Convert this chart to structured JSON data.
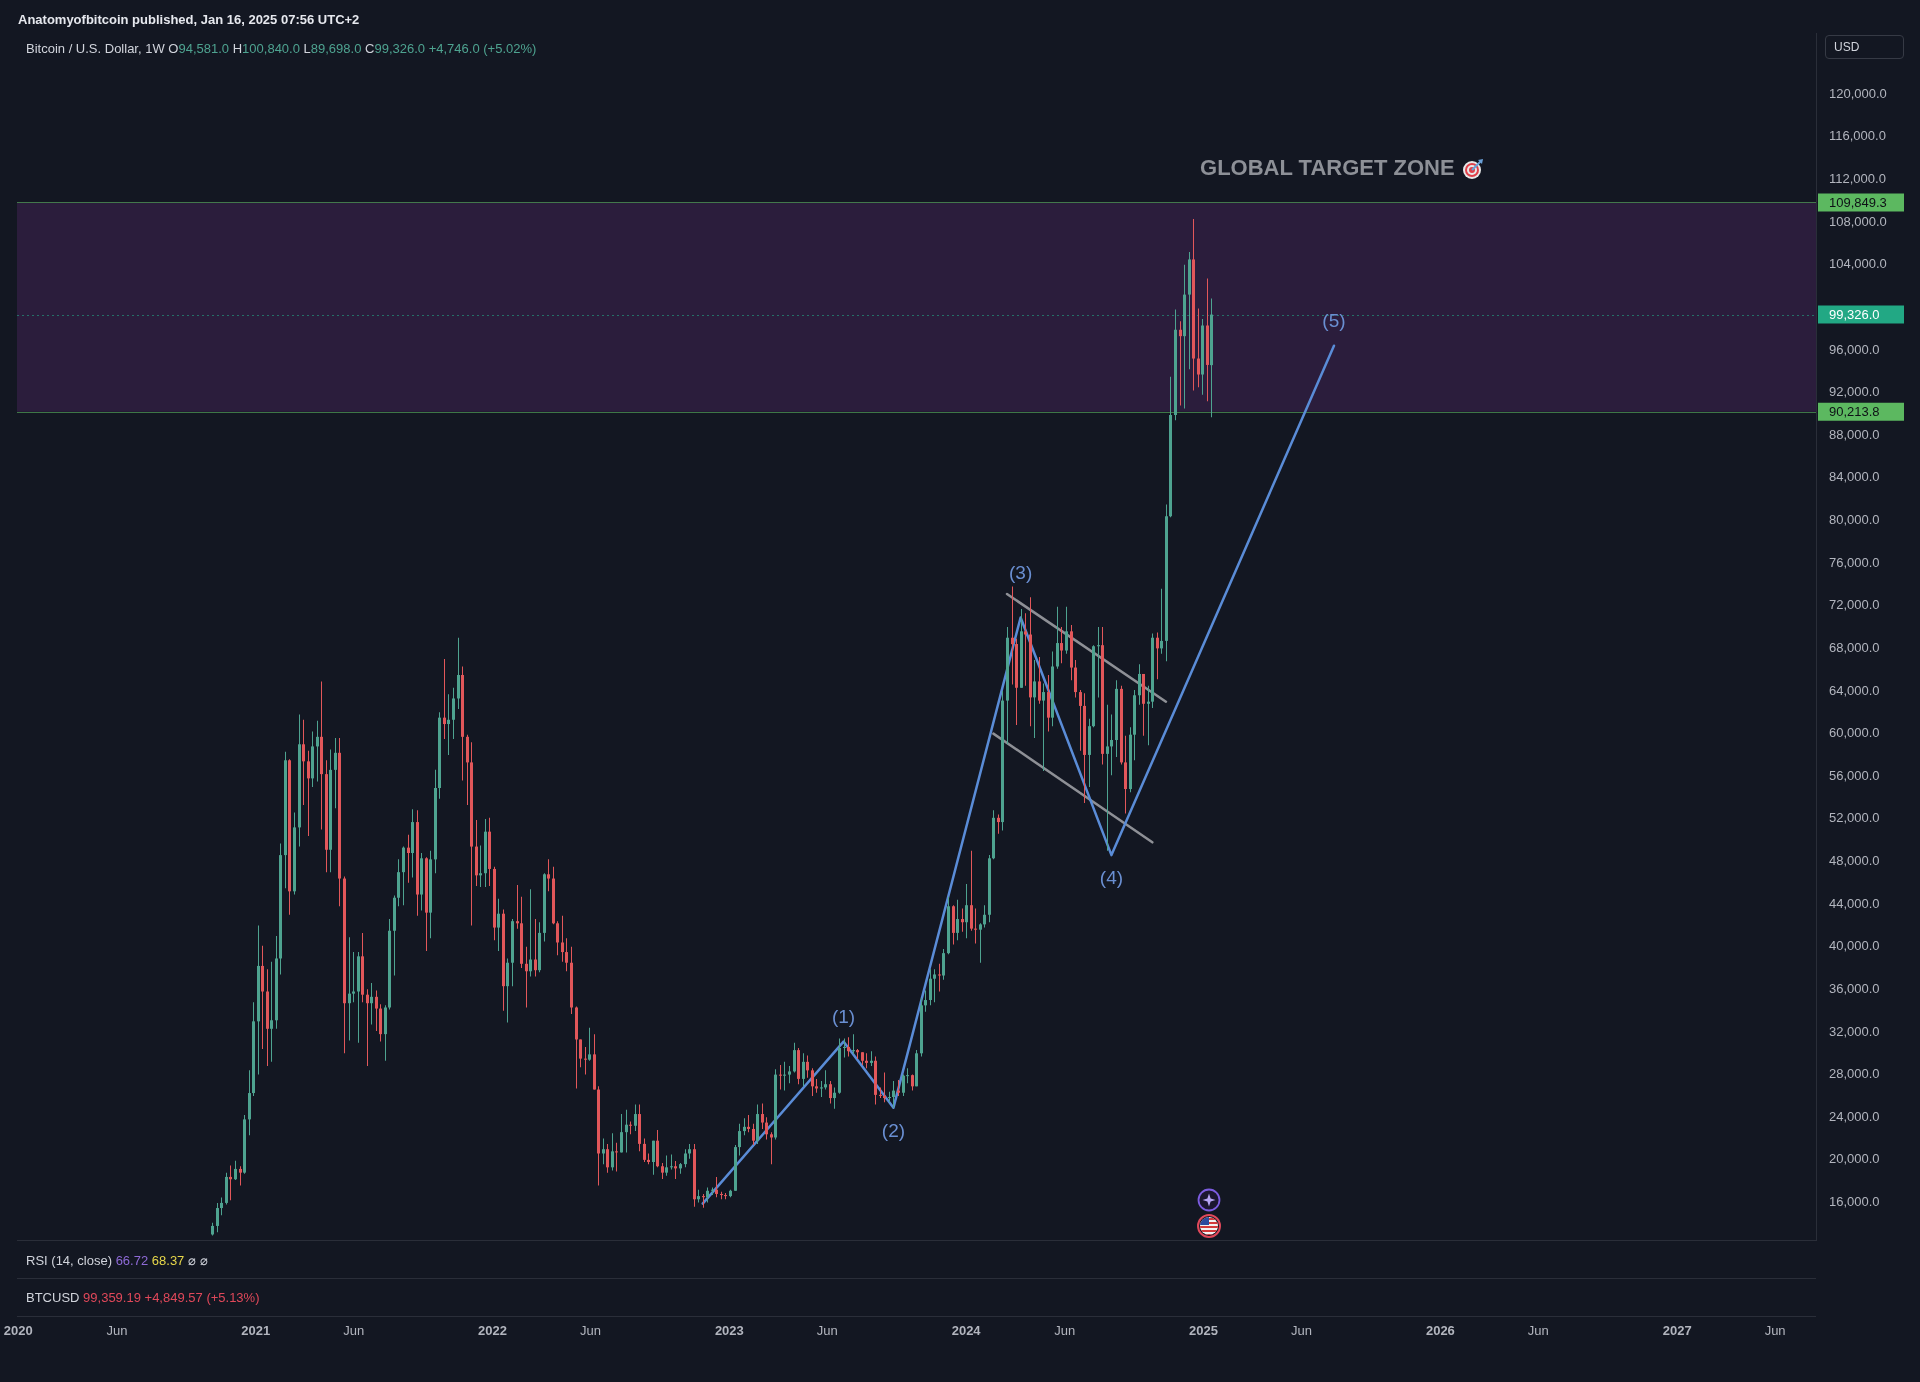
{
  "chart_data": {
    "type": "candlestick",
    "title": "Bitcoin / U.S. Dollar, 1W",
    "subtitle": "O94,581.0 H100,840.0 L89,698.0 C99,326.0 +4,746.0 (+5.02%)",
    "annotations": [
      "Anatomyofbitcoin published, Jan 16, 2025 07:56 UTC+2",
      "RSI (14, close) 66.72 68.37 ⌀ ⌀",
      "BTCUSD 99,359.19 +4,849.57 (+5.13%)",
      "USD",
      {
        "text": "(1)",
        "x": "2023-06-26",
        "y": 31100
      },
      {
        "text": "(2)",
        "x": "2023-09-11",
        "y": 24900
      },
      {
        "text": "(3)",
        "x": "2024-03-25",
        "y": 70900
      },
      {
        "text": "(4)",
        "x": "2024-08-12",
        "y": 48600
      },
      {
        "text": "(5)",
        "x": "2025-07-21",
        "y": 96400
      }
    ],
    "series": [
      {
        "x": [
          "2020-10-26",
          "2020-11-02",
          "2020-11-09",
          "2020-11-16",
          "2020-11-23",
          "2020-11-30",
          "2020-12-07",
          "2020-12-14",
          "2020-12-21",
          "2020-12-28",
          "2021-01-04",
          "2021-01-11",
          "2021-01-18",
          "2021-01-25",
          "2021-02-01",
          "2021-02-08",
          "2021-02-15",
          "2021-02-22",
          "2021-03-01",
          "2021-03-08",
          "2021-03-15",
          "2021-03-22",
          "2021-03-29",
          "2021-04-05",
          "2021-04-12",
          "2021-04-19",
          "2021-04-26",
          "2021-05-03",
          "2021-05-10",
          "2021-05-17",
          "2021-05-24",
          "2021-05-31",
          "2021-06-07",
          "2021-06-14",
          "2021-06-21",
          "2021-06-28",
          "2021-07-05",
          "2021-07-12",
          "2021-07-19",
          "2021-07-26",
          "2021-08-02",
          "2021-08-09",
          "2021-08-16",
          "2021-08-23",
          "2021-08-30",
          "2021-09-06",
          "2021-09-13",
          "2021-09-20",
          "2021-09-27",
          "2021-10-04",
          "2021-10-11",
          "2021-10-18",
          "2021-10-25",
          "2021-11-01",
          "2021-11-08",
          "2021-11-15",
          "2021-11-22",
          "2021-11-29",
          "2021-12-06",
          "2021-12-13",
          "2021-12-20",
          "2021-12-27",
          "2022-01-03",
          "2022-01-10",
          "2022-01-17",
          "2022-01-24",
          "2022-01-31",
          "2022-02-07",
          "2022-02-14",
          "2022-02-21",
          "2022-02-28",
          "2022-03-07",
          "2022-03-14",
          "2022-03-21",
          "2022-03-28",
          "2022-04-04",
          "2022-04-11",
          "2022-04-18",
          "2022-04-25",
          "2022-05-02",
          "2022-05-09",
          "2022-05-16",
          "2022-05-23",
          "2022-05-30",
          "2022-06-06",
          "2022-06-13",
          "2022-06-20",
          "2022-06-27",
          "2022-07-04",
          "2022-07-11",
          "2022-07-18",
          "2022-07-25",
          "2022-08-01",
          "2022-08-08",
          "2022-08-15",
          "2022-08-22",
          "2022-08-29",
          "2022-09-05",
          "2022-09-12",
          "2022-09-19",
          "2022-09-26",
          "2022-10-03",
          "2022-10-10",
          "2022-10-17",
          "2022-10-24",
          "2022-10-31",
          "2022-11-07",
          "2022-11-14",
          "2022-11-21",
          "2022-11-28",
          "2022-12-05",
          "2022-12-12",
          "2022-12-19",
          "2022-12-26",
          "2023-01-02",
          "2023-01-09",
          "2023-01-16",
          "2023-01-23",
          "2023-01-30",
          "2023-02-06",
          "2023-02-13",
          "2023-02-20",
          "2023-02-27",
          "2023-03-06",
          "2023-03-13",
          "2023-03-20",
          "2023-03-27",
          "2023-04-03",
          "2023-04-10",
          "2023-04-17",
          "2023-04-24",
          "2023-05-01",
          "2023-05-08",
          "2023-05-15",
          "2023-05-22",
          "2023-05-29",
          "2023-06-05",
          "2023-06-12",
          "2023-06-19",
          "2023-06-26",
          "2023-07-03",
          "2023-07-10",
          "2023-07-17",
          "2023-07-24",
          "2023-07-31",
          "2023-08-07",
          "2023-08-14",
          "2023-08-21",
          "2023-08-28",
          "2023-09-04",
          "2023-09-11",
          "2023-09-18",
          "2023-09-25",
          "2023-10-02",
          "2023-10-09",
          "2023-10-16",
          "2023-10-23",
          "2023-10-30",
          "2023-11-06",
          "2023-11-13",
          "2023-11-20",
          "2023-11-27",
          "2023-12-04",
          "2023-12-11",
          "2023-12-18",
          "2023-12-25",
          "2024-01-01",
          "2024-01-08",
          "2024-01-15",
          "2024-01-22",
          "2024-01-29",
          "2024-02-05",
          "2024-02-12",
          "2024-02-19",
          "2024-02-26",
          "2024-03-04",
          "2024-03-11",
          "2024-03-18",
          "2024-03-25",
          "2024-04-01",
          "2024-04-08",
          "2024-04-15",
          "2024-04-22",
          "2024-04-29",
          "2024-05-06",
          "2024-05-13",
          "2024-05-20",
          "2024-05-27",
          "2024-06-03",
          "2024-06-10",
          "2024-06-17",
          "2024-06-24",
          "2024-07-01",
          "2024-07-08",
          "2024-07-15",
          "2024-07-22",
          "2024-07-29",
          "2024-08-05",
          "2024-08-12",
          "2024-08-19",
          "2024-08-26",
          "2024-09-02",
          "2024-09-09",
          "2024-09-16",
          "2024-09-23",
          "2024-09-30",
          "2024-10-07",
          "2024-10-14",
          "2024-10-21",
          "2024-10-28",
          "2024-11-04",
          "2024-11-11",
          "2024-11-18",
          "2024-11-25",
          "2024-12-02",
          "2024-12-09",
          "2024-12-16",
          "2024-12-23",
          "2024-12-30",
          "2025-01-06",
          "2025-01-13"
        ],
        "ohlc": [
          [
            13000,
            14100,
            12900,
            13800
          ],
          [
            13800,
            15960,
            13200,
            15480
          ],
          [
            15480,
            16480,
            14800,
            15960
          ],
          [
            15960,
            18800,
            15800,
            18400
          ],
          [
            18400,
            19480,
            16200,
            18180
          ],
          [
            18180,
            19920,
            18100,
            19150
          ],
          [
            19150,
            19400,
            17600,
            18800
          ],
          [
            18800,
            24200,
            18700,
            23800
          ],
          [
            23800,
            28400,
            22300,
            26270
          ],
          [
            26270,
            34800,
            26000,
            33000
          ],
          [
            33000,
            42000,
            28000,
            38200
          ],
          [
            38200,
            40100,
            30400,
            35800
          ],
          [
            35800,
            37900,
            28800,
            32300
          ],
          [
            32300,
            38600,
            29200,
            33100
          ],
          [
            33100,
            41000,
            32300,
            38900
          ],
          [
            38900,
            49700,
            37400,
            48600
          ],
          [
            48600,
            58300,
            45500,
            57500
          ],
          [
            57500,
            57600,
            43000,
            45200
          ],
          [
            45200,
            52600,
            44900,
            51200
          ],
          [
            51200,
            61800,
            49400,
            59000
          ],
          [
            59000,
            61300,
            53300,
            57400
          ],
          [
            57400,
            58400,
            50400,
            55800
          ],
          [
            55800,
            60200,
            55000,
            58800
          ],
          [
            58800,
            61200,
            55500,
            59700
          ],
          [
            59700,
            64900,
            51000,
            56200
          ],
          [
            56200,
            57500,
            47000,
            49100
          ],
          [
            49100,
            58500,
            47000,
            56600
          ],
          [
            56600,
            59600,
            53000,
            58200
          ],
          [
            58200,
            59600,
            43800,
            46400
          ],
          [
            46400,
            46600,
            30000,
            34700
          ],
          [
            34700,
            40900,
            31200,
            35600
          ],
          [
            35600,
            39500,
            34800,
            35800
          ],
          [
            35800,
            39500,
            31000,
            39100
          ],
          [
            39100,
            41300,
            34800,
            35500
          ],
          [
            35500,
            36000,
            28800,
            34700
          ],
          [
            34700,
            36600,
            32700,
            35300
          ],
          [
            35300,
            35900,
            32100,
            34200
          ],
          [
            34200,
            34600,
            31100,
            31800
          ],
          [
            31800,
            34500,
            29300,
            34300
          ],
          [
            34300,
            42600,
            34100,
            41500
          ],
          [
            41500,
            44800,
            37300,
            44600
          ],
          [
            44600,
            48200,
            43800,
            47000
          ],
          [
            47000,
            49400,
            43900,
            49300
          ],
          [
            49300,
            50500,
            46000,
            48800
          ],
          [
            48800,
            52900,
            46500,
            51700
          ],
          [
            51700,
            52800,
            42900,
            44900
          ],
          [
            44900,
            48800,
            43400,
            48300
          ],
          [
            48300,
            48400,
            39600,
            43200
          ],
          [
            43200,
            49000,
            40800,
            48200
          ],
          [
            48200,
            56600,
            46900,
            54900
          ],
          [
            54900,
            62000,
            53900,
            61500
          ],
          [
            61500,
            67000,
            59500,
            60900
          ],
          [
            60900,
            63700,
            58000,
            61300
          ],
          [
            61300,
            64300,
            59500,
            63300
          ],
          [
            63300,
            69000,
            62300,
            65500
          ],
          [
            65500,
            66300,
            55600,
            59700
          ],
          [
            59700,
            59900,
            53300,
            57300
          ],
          [
            57300,
            59200,
            42000,
            49400
          ],
          [
            49400,
            51900,
            45700,
            46700
          ],
          [
            46700,
            49500,
            45600,
            46900
          ],
          [
            46900,
            52000,
            45600,
            50800
          ],
          [
            50800,
            52100,
            45700,
            47300
          ],
          [
            47300,
            47500,
            40600,
            41800
          ],
          [
            41800,
            44500,
            39600,
            43100
          ],
          [
            43100,
            43500,
            34000,
            36300
          ],
          [
            36300,
            38900,
            32900,
            38500
          ],
          [
            38500,
            42600,
            36300,
            42400
          ],
          [
            42400,
            45800,
            41700,
            42200
          ],
          [
            42200,
            44700,
            38000,
            38400
          ],
          [
            38400,
            40000,
            34300,
            37700
          ],
          [
            37700,
            45400,
            37200,
            38800
          ],
          [
            38800,
            42600,
            37200,
            37800
          ],
          [
            37800,
            42300,
            37600,
            41300
          ],
          [
            41300,
            46900,
            40500,
            46800
          ],
          [
            46800,
            48200,
            45200,
            46400
          ],
          [
            46400,
            47500,
            42100,
            42200
          ],
          [
            42200,
            42400,
            39200,
            40400
          ],
          [
            40400,
            42900,
            38600,
            39500
          ],
          [
            39500,
            40800,
            37700,
            38500
          ],
          [
            38500,
            40000,
            33700,
            34300
          ],
          [
            34300,
            34400,
            26700,
            31300
          ],
          [
            31300,
            31300,
            28700,
            29500
          ],
          [
            29500,
            30600,
            28000,
            29400
          ],
          [
            29400,
            32400,
            29300,
            29900
          ],
          [
            29900,
            31800,
            26600,
            26600
          ],
          [
            26600,
            26900,
            17600,
            20600
          ],
          [
            20600,
            22000,
            19600,
            21000
          ],
          [
            21000,
            21500,
            18800,
            19300
          ],
          [
            19300,
            22500,
            19000,
            20800
          ],
          [
            20800,
            21600,
            18900,
            20700
          ],
          [
            20700,
            24300,
            20700,
            22600
          ],
          [
            22600,
            24700,
            20700,
            23300
          ],
          [
            23300,
            23600,
            22400,
            23200
          ],
          [
            23200,
            25200,
            22700,
            24300
          ],
          [
            24300,
            25200,
            20800,
            21500
          ],
          [
            21500,
            22000,
            19800,
            20000
          ],
          [
            20000,
            20600,
            19600,
            19800
          ],
          [
            19800,
            21800,
            18600,
            21800
          ],
          [
            21800,
            22800,
            19300,
            19400
          ],
          [
            19400,
            19700,
            18200,
            18800
          ],
          [
            18800,
            20400,
            18500,
            19300
          ],
          [
            19300,
            20500,
            19100,
            19400
          ],
          [
            19400,
            19900,
            18200,
            19200
          ],
          [
            19200,
            19700,
            18700,
            19600
          ],
          [
            19600,
            21000,
            19300,
            20600
          ],
          [
            20600,
            21500,
            20100,
            21000
          ],
          [
            21000,
            21500,
            15600,
            16300
          ],
          [
            16300,
            17200,
            16000,
            16600
          ],
          [
            16600,
            16800,
            15500,
            16500
          ],
          [
            16500,
            17400,
            16000,
            17100
          ],
          [
            17100,
            17400,
            16700,
            17200
          ],
          [
            17200,
            18400,
            16500,
            16800
          ],
          [
            16800,
            17000,
            16300,
            16700
          ],
          [
            16700,
            16900,
            16300,
            16600
          ],
          [
            16600,
            17200,
            16500,
            17100
          ],
          [
            17100,
            21400,
            17100,
            21200
          ],
          [
            21200,
            23400,
            20400,
            22700
          ],
          [
            22700,
            23900,
            22300,
            23100
          ],
          [
            23100,
            24200,
            22600,
            22900
          ],
          [
            22900,
            23400,
            21400,
            21800
          ],
          [
            21800,
            25200,
            21500,
            24300
          ],
          [
            24300,
            25300,
            22900,
            23500
          ],
          [
            23500,
            24000,
            21900,
            22400
          ],
          [
            22400,
            22600,
            19600,
            22100
          ],
          [
            22100,
            28500,
            21900,
            28000
          ],
          [
            28000,
            28900,
            26600,
            27900
          ],
          [
            27900,
            29200,
            26500,
            28000
          ],
          [
            28000,
            28800,
            27200,
            28300
          ],
          [
            28300,
            31000,
            28200,
            30300
          ],
          [
            30300,
            30500,
            27100,
            27600
          ],
          [
            27600,
            30000,
            26900,
            29200
          ],
          [
            29200,
            29800,
            27700,
            28400
          ],
          [
            28400,
            28600,
            26000,
            26900
          ],
          [
            26900,
            27600,
            26300,
            26700
          ],
          [
            26700,
            27400,
            25900,
            26800
          ],
          [
            26800,
            28400,
            26600,
            27100
          ],
          [
            27100,
            27400,
            25300,
            25800
          ],
          [
            25800,
            26800,
            24800,
            26300
          ],
          [
            26300,
            31400,
            26200,
            30500
          ],
          [
            30500,
            31400,
            29600,
            30600
          ],
          [
            30600,
            31500,
            29700,
            30200
          ],
          [
            30200,
            31800,
            29900,
            30300
          ],
          [
            30300,
            30400,
            29500,
            30100
          ],
          [
            30100,
            30100,
            28900,
            29300
          ],
          [
            29300,
            30000,
            28600,
            29100
          ],
          [
            29100,
            30200,
            28800,
            29300
          ],
          [
            29300,
            29700,
            25200,
            26100
          ],
          [
            26100,
            26800,
            25800,
            26000
          ],
          [
            26000,
            28200,
            25400,
            25800
          ],
          [
            25800,
            26400,
            25400,
            25900
          ],
          [
            25900,
            27400,
            24900,
            26500
          ],
          [
            26500,
            27500,
            26000,
            26300
          ],
          [
            26300,
            28000,
            26000,
            27900
          ],
          [
            27900,
            28600,
            27200,
            27950
          ],
          [
            27950,
            28000,
            26500,
            26900
          ],
          [
            26900,
            30300,
            26900,
            30000
          ],
          [
            30000,
            35200,
            29700,
            34500
          ],
          [
            34500,
            35900,
            33900,
            35000
          ],
          [
            35000,
            37900,
            34500,
            37000
          ],
          [
            37000,
            37900,
            34800,
            37400
          ],
          [
            37400,
            38400,
            35800,
            37300
          ],
          [
            37300,
            39800,
            36900,
            39400
          ],
          [
            39400,
            44700,
            39300,
            43800
          ],
          [
            43800,
            43900,
            40200,
            41300
          ],
          [
            41300,
            44400,
            40600,
            42600
          ],
          [
            42600,
            43600,
            41400,
            42300
          ],
          [
            42300,
            45900,
            40800,
            43900
          ],
          [
            43900,
            49000,
            41500,
            41700
          ],
          [
            41700,
            43600,
            40300,
            41600
          ],
          [
            41600,
            42200,
            38500,
            42100
          ],
          [
            42100,
            43900,
            41800,
            43000
          ],
          [
            43000,
            48600,
            42300,
            48300
          ],
          [
            48300,
            52800,
            48200,
            52100
          ],
          [
            52100,
            52400,
            50600,
            51700
          ],
          [
            51700,
            64000,
            50900,
            63100
          ],
          [
            63100,
            70000,
            59000,
            69000
          ],
          [
            69000,
            73800,
            64600,
            68400
          ],
          [
            68400,
            68900,
            60800,
            64300
          ],
          [
            64300,
            71700,
            64300,
            69600
          ],
          [
            69600,
            71300,
            64500,
            69300
          ],
          [
            69300,
            72800,
            60700,
            63400
          ],
          [
            63400,
            66900,
            59600,
            64900
          ],
          [
            64900,
            67200,
            62800,
            63100
          ],
          [
            63100,
            64700,
            56500,
            63900
          ],
          [
            63900,
            65500,
            60200,
            61500
          ],
          [
            61500,
            67700,
            60700,
            66300
          ],
          [
            66300,
            71900,
            66100,
            68500
          ],
          [
            68500,
            70000,
            66600,
            67800
          ],
          [
            67800,
            71900,
            67500,
            69600
          ],
          [
            69600,
            70200,
            65000,
            66200
          ],
          [
            66200,
            66900,
            63400,
            63900
          ],
          [
            63900,
            64100,
            58400,
            62600
          ],
          [
            62600,
            63800,
            53500,
            58000
          ],
          [
            58000,
            61400,
            55000,
            60700
          ],
          [
            60700,
            68300,
            60600,
            68200
          ],
          [
            68200,
            70000,
            63400,
            68300
          ],
          [
            68300,
            70000,
            57100,
            58100
          ],
          [
            58100,
            62700,
            49000,
            58800
          ],
          [
            58800,
            61800,
            56100,
            59400
          ],
          [
            59400,
            65000,
            57800,
            64200
          ],
          [
            64200,
            64500,
            57100,
            57300
          ],
          [
            57300,
            59800,
            52500,
            54800
          ],
          [
            54800,
            60600,
            54500,
            59900
          ],
          [
            59900,
            64100,
            57500,
            63600
          ],
          [
            63600,
            66500,
            62700,
            65600
          ],
          [
            65600,
            65600,
            59800,
            62800
          ],
          [
            62800,
            64500,
            58900,
            63000
          ],
          [
            63000,
            69400,
            62400,
            69000
          ],
          [
            69000,
            69500,
            65100,
            68000
          ],
          [
            68000,
            73600,
            67500,
            68700
          ],
          [
            68700,
            81500,
            66800,
            80400
          ],
          [
            80400,
            93500,
            80300,
            89900
          ],
          [
            89900,
            99800,
            89400,
            97900
          ],
          [
            97900,
            98700,
            90800,
            97300
          ],
          [
            97300,
            104000,
            90500,
            101200
          ],
          [
            101200,
            105200,
            94200,
            104500
          ],
          [
            104500,
            108300,
            92200,
            95200
          ],
          [
            95200,
            99900,
            92500,
            93700
          ],
          [
            93700,
            98900,
            91800,
            98300
          ],
          [
            98300,
            102700,
            91200,
            94600
          ],
          [
            94581,
            100840,
            89698,
            99326
          ]
        ],
        "colors": [
          "#4ea390",
          "#4ea390",
          "#4ea390",
          "#4ea390",
          "#e2575a",
          "#4ea390",
          "#e2575a",
          "#4ea390",
          "#4ea390",
          "#4ea390",
          "#4ea390",
          "#e2575a",
          "#e2575a",
          "#4ea390",
          "#4ea390",
          "#4ea390",
          "#4ea390",
          "#e2575a",
          "#4ea390",
          "#4ea390",
          "#e2575a",
          "#e2575a",
          "#4ea390",
          "#4ea390",
          "#e2575a",
          "#e2575a",
          "#4ea390",
          "#4ea390",
          "#e2575a",
          "#e2575a",
          "#4ea390",
          "#4ea390",
          "#4ea390",
          "#e2575a",
          "#e2575a",
          "#4ea390",
          "#e2575a",
          "#e2575a",
          "#4ea390",
          "#4ea390",
          "#4ea390",
          "#4ea390",
          "#4ea390",
          "#e2575a",
          "#4ea390",
          "#e2575a",
          "#4ea390",
          "#e2575a",
          "#4ea390",
          "#4ea390",
          "#4ea390",
          "#e2575a",
          "#4ea390",
          "#4ea390",
          "#4ea390",
          "#e2575a",
          "#e2575a",
          "#e2575a",
          "#e2575a",
          "#4ea390",
          "#4ea390",
          "#e2575a",
          "#e2575a",
          "#4ea390",
          "#e2575a",
          "#4ea390",
          "#4ea390",
          "#e2575a",
          "#e2575a",
          "#e2575a",
          "#4ea390",
          "#e2575a",
          "#4ea390",
          "#4ea390",
          "#e2575a",
          "#e2575a",
          "#e2575a",
          "#e2575a",
          "#e2575a",
          "#e2575a",
          "#e2575a",
          "#e2575a",
          "#e2575a",
          "#4ea390",
          "#e2575a",
          "#e2575a",
          "#4ea390",
          "#e2575a",
          "#4ea390",
          "#e2575a",
          "#4ea390",
          "#4ea390",
          "#e2575a",
          "#4ea390",
          "#e2575a",
          "#e2575a",
          "#e2575a",
          "#4ea390",
          "#e2575a",
          "#e2575a",
          "#4ea390",
          "#4ea390",
          "#e2575a",
          "#4ea390",
          "#4ea390",
          "#4ea390",
          "#e2575a",
          "#4ea390",
          "#e2575a",
          "#4ea390",
          "#4ea390",
          "#e2575a",
          "#e2575a",
          "#e2575a",
          "#4ea390",
          "#4ea390",
          "#4ea390",
          "#4ea390",
          "#e2575a",
          "#e2575a",
          "#4ea390",
          "#e2575a",
          "#e2575a",
          "#e2575a",
          "#4ea390",
          "#e2575a",
          "#4ea390",
          "#4ea390",
          "#4ea390",
          "#e2575a",
          "#4ea390",
          "#e2575a",
          "#e2575a",
          "#e2575a",
          "#4ea390",
          "#4ea390",
          "#e2575a",
          "#4ea390",
          "#4ea390",
          "#4ea390",
          "#e2575a",
          "#4ea390",
          "#e2575a",
          "#e2575a",
          "#e2575a",
          "#4ea390",
          "#e2575a",
          "#e2575a",
          "#e2575a",
          "#4ea390",
          "#4ea390",
          "#e2575a",
          "#4ea390",
          "#4ea390",
          "#e2575a",
          "#4ea390",
          "#4ea390",
          "#4ea390",
          "#4ea390",
          "#4ea390",
          "#e2575a",
          "#4ea390",
          "#4ea390",
          "#e2575a",
          "#4ea390",
          "#e2575a",
          "#4ea390",
          "#e2575a",
          "#e2575a",
          "#4ea390",
          "#4ea390",
          "#4ea390",
          "#4ea390",
          "#e2575a",
          "#4ea390",
          "#4ea390",
          "#e2575a",
          "#e2575a",
          "#4ea390",
          "#e2575a",
          "#e2575a",
          "#4ea390",
          "#e2575a",
          "#4ea390",
          "#e2575a",
          "#4ea390",
          "#4ea390",
          "#e2575a",
          "#4ea390",
          "#e2575a",
          "#e2575a",
          "#e2575a",
          "#e2575a",
          "#4ea390",
          "#4ea390",
          "#4ea390",
          "#e2575a",
          "#4ea390",
          "#4ea390",
          "#4ea390",
          "#e2575a",
          "#e2575a",
          "#4ea390",
          "#4ea390",
          "#4ea390",
          "#e2575a",
          "#4ea390",
          "#4ea390",
          "#e2575a",
          "#4ea390",
          "#4ea390",
          "#4ea390",
          "#4ea390",
          "#e2575a",
          "#4ea390",
          "#4ea390",
          "#e2575a",
          "#e2575a",
          "#4ea390",
          "#e2575a",
          "#4ea390"
        ]
      },
      {
        "type": "line",
        "x": [
          "2022-11-21",
          "2023-06-26",
          "2023-09-11",
          "2024-03-25",
          "2024-08-12",
          "2025-07-21"
        ],
        "values": [
          15900,
          31100,
          24900,
          70900,
          48600,
          96400
        ],
        "color": "#5a8cd7"
      },
      {
        "type": "line",
        "x": [
          "2024-03-04",
          "2024-11-04"
        ],
        "values": [
          73100,
          63000
        ],
        "color": "#8e9096"
      },
      {
        "type": "line",
        "x": [
          "2024-02-12",
          "2024-10-14"
        ],
        "values": [
          60000,
          49800
        ],
        "color": "#8e9096"
      }
    ],
    "xlim": [
      "2019-12-30",
      "2027-08-03"
    ],
    "xticks": [
      "2020",
      {
        "value": "2020-06",
        "label": "Jun"
      },
      "2021",
      {
        "value": "2021-06",
        "label": "Jun"
      },
      "2022",
      {
        "value": "2022-06",
        "label": "Jun"
      },
      "2023",
      {
        "value": "2023-06",
        "label": "Jun"
      },
      "2024",
      {
        "value": "2024-06",
        "label": "Jun"
      },
      "2025",
      {
        "value": "2025-06",
        "label": "Jun"
      },
      "2026",
      {
        "value": "2026-06",
        "label": "Jun"
      },
      "2027",
      {
        "value": "2027-06",
        "label": "Jun"
      }
    ],
    "ylim": [
      12480,
      125750
    ],
    "yticks": [
      {
        "value": 16000,
        "label": "16,000.0"
      },
      {
        "value": 20000,
        "label": "20,000.0"
      },
      {
        "value": 24000,
        "label": "24,000.0"
      },
      {
        "value": 28000,
        "label": "28,000.0"
      },
      {
        "value": 32000,
        "label": "32,000.0"
      },
      {
        "value": 36000,
        "label": "36,000.0"
      },
      {
        "value": 40000,
        "label": "40,000.0"
      },
      {
        "value": 44000,
        "label": "44,000.0"
      },
      {
        "value": 48000,
        "label": "48,000.0"
      },
      {
        "value": 52000,
        "label": "52,000.0"
      },
      {
        "value": 56000,
        "label": "56,000.0"
      },
      {
        "value": 60000,
        "label": "60,000.0"
      },
      {
        "value": 64000,
        "label": "64,000.0"
      },
      {
        "value": 68000,
        "label": "68,000.0"
      },
      {
        "value": 72000,
        "label": "72,000.0"
      },
      {
        "value": 76000,
        "label": "76,000.0"
      },
      {
        "value": 80000,
        "label": "80,000.0"
      },
      {
        "value": 84000,
        "label": "84,000.0"
      },
      {
        "value": 88000,
        "label": "88,000.0"
      },
      {
        "value": 92000,
        "label": "92,000.0"
      },
      {
        "value": 96000,
        "label": "96,000.0"
      },
      {
        "value": 104000,
        "label": "104,000.0"
      },
      {
        "value": 108000,
        "label": "108,000.0"
      },
      {
        "value": 112000,
        "label": "112,000.0"
      },
      {
        "value": 116000,
        "label": "116,000.0"
      },
      {
        "value": 120000,
        "label": "120,000.0"
      }
    ],
    "bands": [
      {
        "axis": "y",
        "from": 90213.8,
        "to": 109849.3,
        "label": "GLOBAL TARGET ZONE",
        "color": "#2b1d3c"
      }
    ],
    "ref_lines": [
      {
        "axis": "y",
        "value": 109849.3,
        "label": "109,849.3",
        "color": "#5cb860"
      },
      {
        "axis": "y",
        "value": 99326,
        "label": "99,326.0",
        "color": "#22a884",
        "line_style": "dotted"
      },
      {
        "axis": "y",
        "value": 90213.8,
        "label": "90,213.8",
        "color": "#5cb860"
      }
    ]
  }
}
